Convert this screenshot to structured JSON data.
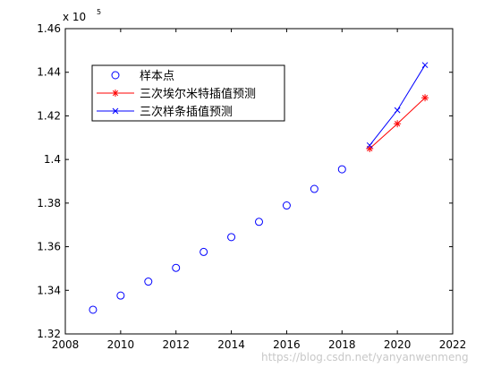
{
  "chart_data": {
    "type": "line",
    "title": "",
    "xlabel": "",
    "ylabel": "",
    "xlim": [
      2008,
      2022
    ],
    "ylim": [
      1.32,
      1.46
    ],
    "y_exponent_label": "x 10",
    "y_exponent_power": "5",
    "x_ticks": [
      2008,
      2010,
      2012,
      2014,
      2016,
      2018,
      2020,
      2022
    ],
    "x_tick_labels": [
      "2008",
      "2010",
      "2012",
      "2014",
      "2016",
      "2018",
      "2020",
      "2022"
    ],
    "y_ticks": [
      1.32,
      1.34,
      1.36,
      1.38,
      1.4,
      1.42,
      1.44,
      1.46
    ],
    "y_tick_labels": [
      "1.32",
      "1.34",
      "1.36",
      "1.38",
      "1.4",
      "1.42",
      "1.44",
      "1.46"
    ],
    "grid": false,
    "legend_position": "top-left",
    "series": [
      {
        "name": "样本点",
        "style": "markers",
        "marker": "circle",
        "color": "#0000ff",
        "x": [
          2009,
          2010,
          2011,
          2012,
          2013,
          2014,
          2015,
          2016,
          2017,
          2018
        ],
        "y": [
          1.3311,
          1.3376,
          1.344,
          1.3503,
          1.3576,
          1.3644,
          1.3714,
          1.3789,
          1.3865,
          1.3955
        ]
      },
      {
        "name": "三次埃尔米特插值预测",
        "style": "line-markers",
        "marker": "star",
        "color": "#ff0000",
        "x": [
          2019,
          2020,
          2021
        ],
        "y": [
          1.405,
          1.4164,
          1.4283
        ]
      },
      {
        "name": "三次样条插值预测",
        "style": "line-markers",
        "marker": "cross",
        "color": "#0000ff",
        "x": [
          2019,
          2020,
          2021
        ],
        "y": [
          1.4065,
          1.4226,
          1.4433
        ]
      }
    ]
  },
  "watermark": "https://blog.csdn.net/yanyanwenmeng"
}
